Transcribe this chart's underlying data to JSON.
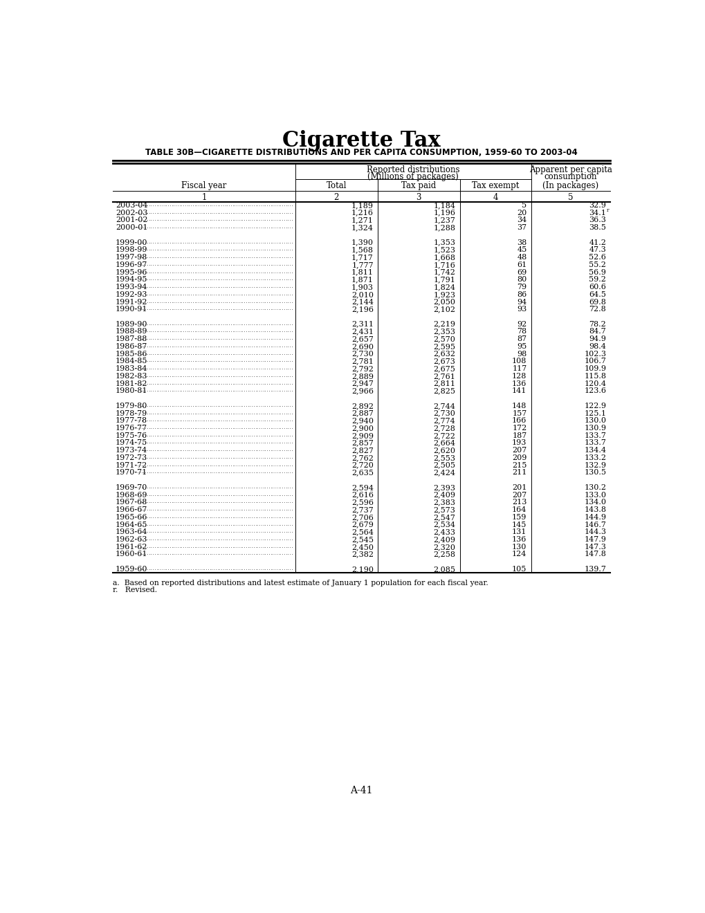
{
  "title": "Cigarette Tax",
  "subtitle": "TABLE 30B—CIGARETTE DISTRIBUTIONS AND PER CAPITA CONSUMPTION, 1959-60 TO 2003-04",
  "footnote_a": "a.  Based on reported distributions and latest estimate of January 1 population for each fiscal year.",
  "footnote_r": "r.   Revised.",
  "page_number": "A-41",
  "rows": [
    [
      "2003-04",
      "1,189",
      "1,184",
      "5",
      "32.9"
    ],
    [
      "2002-03",
      "1,216",
      "1,196",
      "20",
      "34.1r"
    ],
    [
      "2001-02",
      "1,271",
      "1,237",
      "34",
      "36.3"
    ],
    [
      "2000-01",
      "1,324",
      "1,288",
      "37",
      "38.5"
    ],
    [
      "",
      "",
      "",
      "",
      ""
    ],
    [
      "1999-00",
      "1,390",
      "1,353",
      "38",
      "41.2"
    ],
    [
      "1998-99",
      "1,568",
      "1,523",
      "45",
      "47.3"
    ],
    [
      "1997-98",
      "1,717",
      "1,668",
      "48",
      "52.6"
    ],
    [
      "1996-97",
      "1,777",
      "1,716",
      "61",
      "55.2"
    ],
    [
      "1995-96",
      "1,811",
      "1,742",
      "69",
      "56.9"
    ],
    [
      "1994-95",
      "1,871",
      "1,791",
      "80",
      "59.2"
    ],
    [
      "1993-94",
      "1,903",
      "1,824",
      "79",
      "60.6"
    ],
    [
      "1992-93",
      "2,010",
      "1,923",
      "86",
      "64.5"
    ],
    [
      "1991-92",
      "2,144",
      "2,050",
      "94",
      "69.8"
    ],
    [
      "1990-91",
      "2,196",
      "2,102",
      "93",
      "72.8"
    ],
    [
      "",
      "",
      "",
      "",
      ""
    ],
    [
      "1989-90",
      "2,311",
      "2,219",
      "92",
      "78.2"
    ],
    [
      "1988-89",
      "2,431",
      "2,353",
      "78",
      "84.7"
    ],
    [
      "1987-88",
      "2,657",
      "2,570",
      "87",
      "94.9"
    ],
    [
      "1986-87",
      "2,690",
      "2,595",
      "95",
      "98.4"
    ],
    [
      "1985-86",
      "2,730",
      "2,632",
      "98",
      "102.3"
    ],
    [
      "1984-85",
      "2,781",
      "2,673",
      "108",
      "106.7"
    ],
    [
      "1983-84",
      "2,792",
      "2,675",
      "117",
      "109.9"
    ],
    [
      "1982-83",
      "2,889",
      "2,761",
      "128",
      "115.8"
    ],
    [
      "1981-82",
      "2,947",
      "2,811",
      "136",
      "120.4"
    ],
    [
      "1980-81",
      "2,966",
      "2,825",
      "141",
      "123.6"
    ],
    [
      "",
      "",
      "",
      "",
      ""
    ],
    [
      "1979-80",
      "2,892",
      "2,744",
      "148",
      "122.9"
    ],
    [
      "1978-79",
      "2,887",
      "2,730",
      "157",
      "125.1"
    ],
    [
      "1977-78",
      "2,940",
      "2,774",
      "166",
      "130.0"
    ],
    [
      "1976-77",
      "2,900",
      "2,728",
      "172",
      "130.9"
    ],
    [
      "1975-76",
      "2,909",
      "2,722",
      "187",
      "133.7"
    ],
    [
      "1974-75",
      "2,857",
      "2,664",
      "193",
      "133.7"
    ],
    [
      "1973-74",
      "2,827",
      "2,620",
      "207",
      "134.4"
    ],
    [
      "1972-73",
      "2,762",
      "2,553",
      "209",
      "133.2"
    ],
    [
      "1971-72",
      "2,720",
      "2,505",
      "215",
      "132.9"
    ],
    [
      "1970-71",
      "2,635",
      "2,424",
      "211",
      "130.5"
    ],
    [
      "",
      "",
      "",
      "",
      ""
    ],
    [
      "1969-70",
      "2,594",
      "2,393",
      "201",
      "130.2"
    ],
    [
      "1968-69",
      "2,616",
      "2,409",
      "207",
      "133.0"
    ],
    [
      "1967-68",
      "2,596",
      "2,383",
      "213",
      "134.0"
    ],
    [
      "1966-67",
      "2,737",
      "2,573",
      "164",
      "143.8"
    ],
    [
      "1965-66",
      "2,706",
      "2,547",
      "159",
      "144.9"
    ],
    [
      "1964-65",
      "2,679",
      "2,534",
      "145",
      "146.7"
    ],
    [
      "1963-64",
      "2,564",
      "2,433",
      "131",
      "144.3"
    ],
    [
      "1962-63",
      "2,545",
      "2,409",
      "136",
      "147.9"
    ],
    [
      "1961-62",
      "2,450",
      "2,320",
      "130",
      "147.3"
    ],
    [
      "1960-61",
      "2,382",
      "2,258",
      "124",
      "147.8"
    ],
    [
      "",
      "",
      "",
      "",
      ""
    ],
    [
      "1959-60",
      "2,190",
      "2,085",
      "105",
      "139.7"
    ]
  ]
}
